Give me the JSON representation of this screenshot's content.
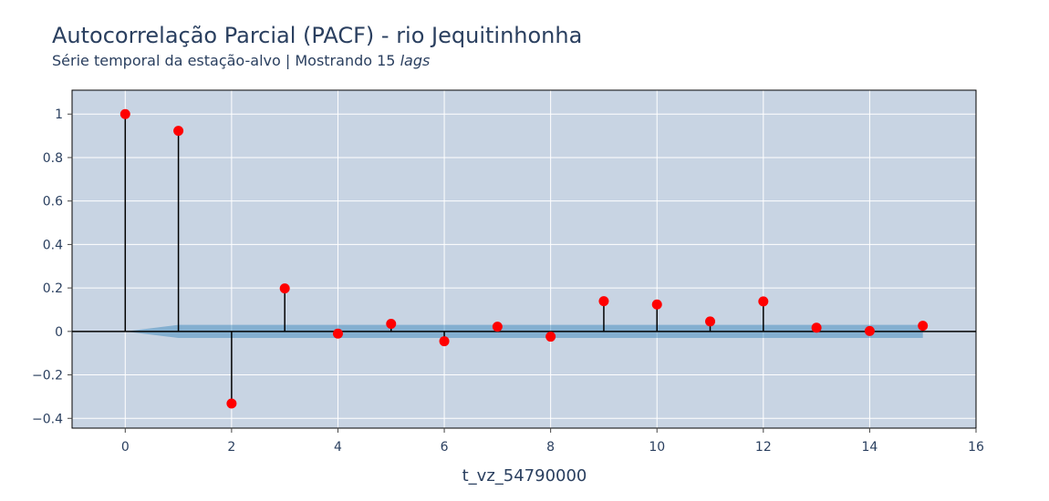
{
  "title": "Autocorrelação Parcial (PACF) - rio Jequitinhonha",
  "subtitle_prefix": "Série temporal da estação-alvo | Mostrando 15 ",
  "subtitle_italic": "lags",
  "colors": {
    "plot_bg": "#c8d4e3",
    "grid": "#ffffff",
    "stem": "#000000",
    "marker": "#ff0000",
    "band": "#1f77b4",
    "text": "#2a3f5f"
  },
  "chart_data": {
    "type": "stem",
    "xlabel": "t_vz_54790000",
    "ylabel": "",
    "xlim": [
      -1,
      16
    ],
    "ylim": [
      -0.445,
      1.11
    ],
    "x_ticks": [
      0,
      2,
      4,
      6,
      8,
      10,
      12,
      14,
      16
    ],
    "x_tick_labels": [
      "0",
      "2",
      "4",
      "6",
      "8",
      "10",
      "12",
      "14",
      "16"
    ],
    "y_ticks": [
      -0.4,
      -0.2,
      0,
      0.2,
      0.4,
      0.6,
      0.8,
      1
    ],
    "y_tick_labels": [
      "−0.4",
      "−0.2",
      "0",
      "0.2",
      "0.4",
      "0.6",
      "0.8",
      "1"
    ],
    "grid": true,
    "lags": [
      0,
      1,
      2,
      3,
      4,
      5,
      6,
      7,
      8,
      9,
      10,
      11,
      12,
      13,
      14,
      15
    ],
    "pacf": [
      1.0,
      0.923,
      -0.332,
      0.198,
      -0.01,
      0.035,
      -0.045,
      0.022,
      -0.024,
      0.139,
      0.124,
      0.046,
      0.138,
      0.017,
      0.002,
      0.026
    ],
    "confidence_band": {
      "lags": [
        0,
        1,
        2,
        3,
        4,
        5,
        6,
        7,
        8,
        9,
        10,
        11,
        12,
        13,
        14,
        15
      ],
      "upper": [
        0,
        0.03,
        0.03,
        0.03,
        0.03,
        0.03,
        0.03,
        0.03,
        0.03,
        0.03,
        0.03,
        0.03,
        0.03,
        0.03,
        0.03,
        0.03
      ],
      "lower": [
        0,
        -0.03,
        -0.03,
        -0.03,
        -0.03,
        -0.03,
        -0.03,
        -0.03,
        -0.03,
        -0.03,
        -0.03,
        -0.03,
        -0.03,
        -0.03,
        -0.03,
        -0.03
      ]
    }
  }
}
